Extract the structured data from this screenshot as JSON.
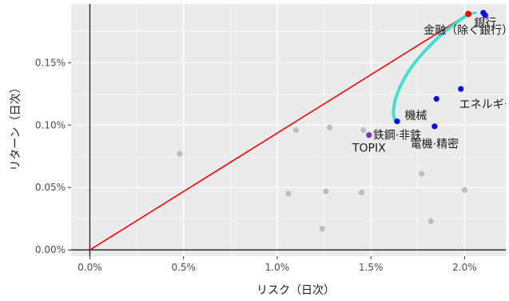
{
  "chart_data": {
    "type": "scatter",
    "xlabel": "リスク（日次）",
    "ylabel": "リターン（日次）",
    "xlim": [
      -0.001,
      0.0222
    ],
    "ylim": [
      -5e-05,
      0.00197
    ],
    "x_ticks": [
      {
        "value": 0.0,
        "label": "0.0%"
      },
      {
        "value": 0.005,
        "label": "0.5%"
      },
      {
        "value": 0.01,
        "label": "1.0%"
      },
      {
        "value": 0.015,
        "label": "1.5%"
      },
      {
        "value": 0.02,
        "label": "2.0%"
      }
    ],
    "y_ticks": [
      {
        "value": 0.0,
        "label": "0.00%"
      },
      {
        "value": 0.0005,
        "label": "0.05%"
      },
      {
        "value": 0.001,
        "label": "0.10%"
      },
      {
        "value": 0.0015,
        "label": "0.15%"
      }
    ],
    "grid": true,
    "colors": {
      "panel": "#ebebeb",
      "grid": "#ffffff",
      "gray_points": "#bdbdbd",
      "blue_points": "#0000ff",
      "purple_point": "#7b2fbe",
      "tangent_line": "#ff0000",
      "tangent_point": "#ff0000",
      "frontier": "#40e0d0"
    },
    "gray_points": [
      {
        "x": 0.0048,
        "y": 0.00077
      },
      {
        "x": 0.0106,
        "y": 0.00045
      },
      {
        "x": 0.011,
        "y": 0.00096
      },
      {
        "x": 0.0124,
        "y": 0.00017
      },
      {
        "x": 0.0126,
        "y": 0.00047
      },
      {
        "x": 0.0128,
        "y": 0.00098
      },
      {
        "x": 0.0145,
        "y": 0.00046
      },
      {
        "x": 0.0146,
        "y": 0.00096
      },
      {
        "x": 0.0177,
        "y": 0.00061
      },
      {
        "x": 0.0182,
        "y": 0.00023
      },
      {
        "x": 0.02,
        "y": 0.00048
      }
    ],
    "blue_points": [
      {
        "x": 0.0164,
        "y": 0.00103
      },
      {
        "x": 0.0184,
        "y": 0.00099
      },
      {
        "x": 0.0185,
        "y": 0.00121
      },
      {
        "x": 0.0198,
        "y": 0.00129
      },
      {
        "x": 0.021,
        "y": 0.0019
      },
      {
        "x": 0.0211,
        "y": 0.00188
      }
    ],
    "purple_points": [
      {
        "x": 0.0149,
        "y": 0.00092
      }
    ],
    "tangent_point": {
      "x": 0.0202,
      "y": 0.00189
    },
    "tangent_line": {
      "from": {
        "x": 0.0,
        "y": 0.0
      },
      "to": {
        "x": 0.0202,
        "y": 0.00189
      }
    },
    "frontier": [
      {
        "x": 0.0202,
        "y": 0.00189
      },
      {
        "x": 0.0188,
        "y": 0.00173
      },
      {
        "x": 0.0178,
        "y": 0.00158
      },
      {
        "x": 0.0171,
        "y": 0.00145
      },
      {
        "x": 0.0166,
        "y": 0.00132
      },
      {
        "x": 0.0163,
        "y": 0.0012
      },
      {
        "x": 0.0162,
        "y": 0.0011
      },
      {
        "x": 0.0163,
        "y": 0.00103
      }
    ],
    "frontier_tail": [
      {
        "x": 0.0202,
        "y": 0.00189
      },
      {
        "x": 0.0206,
        "y": 0.0019
      }
    ],
    "annotations": [
      {
        "text": "金融（除く銀行）",
        "x": 0.0202,
        "y": 0.00176
      },
      {
        "text": "銀行",
        "x": 0.0211,
        "y": 0.00182
      },
      {
        "text": "エネルギー資源",
        "x": 0.0218,
        "y": 0.00117
      },
      {
        "text": "機械",
        "x": 0.0174,
        "y": 0.00108
      },
      {
        "text": "鉄鋼·非鉄",
        "x": 0.0164,
        "y": 0.00092
      },
      {
        "text": "電機·精密",
        "x": 0.0184,
        "y": 0.00085
      },
      {
        "text": "TOPIX",
        "x": 0.0149,
        "y": 0.00082
      }
    ]
  }
}
